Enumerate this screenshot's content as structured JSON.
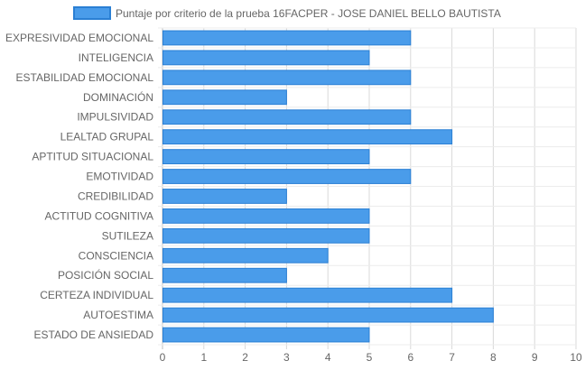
{
  "chart_data": {
    "type": "bar",
    "orientation": "horizontal",
    "series": [
      {
        "name": "Puntaje por criterio de la prueba 16FACPER - JOSE DANIEL BELLO BAUTISTA",
        "values": [
          6,
          5,
          6,
          3,
          6,
          7,
          5,
          6,
          3,
          5,
          5,
          4,
          3,
          7,
          8,
          5
        ]
      }
    ],
    "categories": [
      "EXPRESIVIDAD EMOCIONAL",
      "INTELIGENCIA",
      "ESTABILIDAD EMOCIONAL",
      "DOMINACIÓN",
      "IMPULSIVIDAD",
      "LEALTAD GRUPAL",
      "APTITUD SITUACIONAL",
      "EMOTIVIDAD",
      "CREDIBILIDAD",
      "ACTITUD COGNITIVA",
      "SUTILEZA",
      "CONSCIENCIA",
      "POSICIÓN SOCIAL",
      "CERTEZA INDIVIDUAL",
      "AUTOESTIMA",
      "ESTADO DE ANSIEDAD"
    ],
    "xlim": [
      0,
      10
    ],
    "xticks": [
      "0",
      "1",
      "2",
      "3",
      "4",
      "5",
      "6",
      "7",
      "8",
      "9",
      "10"
    ],
    "grid": true,
    "legend_position": "top",
    "bar_color": "#4a9cea",
    "bar_border_color": "#2a7fd4"
  }
}
